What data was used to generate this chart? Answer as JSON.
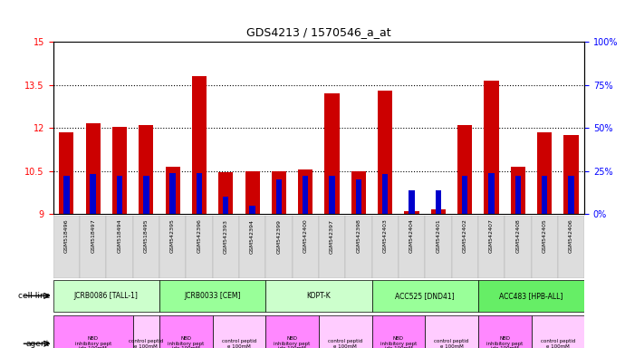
{
  "title": "GDS4213 / 1570546_a_at",
  "samples": [
    "GSM518496",
    "GSM518497",
    "GSM518494",
    "GSM518495",
    "GSM542395",
    "GSM542396",
    "GSM542393",
    "GSM542394",
    "GSM542399",
    "GSM542400",
    "GSM542397",
    "GSM542398",
    "GSM542403",
    "GSM542404",
    "GSM542401",
    "GSM542402",
    "GSM542407",
    "GSM542408",
    "GSM542405",
    "GSM542406"
  ],
  "count_values": [
    11.85,
    12.15,
    12.05,
    12.1,
    10.65,
    13.8,
    10.45,
    10.5,
    10.5,
    10.55,
    13.2,
    10.5,
    13.3,
    9.1,
    9.15,
    12.1,
    13.65,
    10.65,
    11.85,
    11.75
  ],
  "percentile_values": [
    22,
    23,
    22,
    22,
    24,
    24,
    10,
    5,
    20,
    22,
    22,
    20,
    23,
    14,
    14,
    22,
    24,
    22,
    22,
    22
  ],
  "cell_lines": [
    {
      "label": "JCRB0086 [TALL-1]",
      "start": 0,
      "end": 4,
      "color": "#ccffcc"
    },
    {
      "label": "JCRB0033 [CEM]",
      "start": 4,
      "end": 8,
      "color": "#99ff99"
    },
    {
      "label": "KOPT-K",
      "start": 8,
      "end": 12,
      "color": "#ccffcc"
    },
    {
      "label": "ACC525 [DND41]",
      "start": 12,
      "end": 16,
      "color": "#99ff99"
    },
    {
      "label": "ACC483 [HPB-ALL]",
      "start": 16,
      "end": 20,
      "color": "#66ee66"
    }
  ],
  "agents": [
    {
      "label": "NBD\ninhibitory pept\nide 100mM",
      "start": 0,
      "end": 3,
      "color": "#ff88ff"
    },
    {
      "label": "control peptid\ne 100mM",
      "start": 3,
      "end": 4,
      "color": "#ffccff"
    },
    {
      "label": "NBD\ninhibitory pept\nide 100mM",
      "start": 4,
      "end": 6,
      "color": "#ff88ff"
    },
    {
      "label": "control peptid\ne 100mM",
      "start": 6,
      "end": 8,
      "color": "#ffccff"
    },
    {
      "label": "NBD\ninhibitory pept\nide 100mM",
      "start": 8,
      "end": 10,
      "color": "#ff88ff"
    },
    {
      "label": "control peptid\ne 100mM",
      "start": 10,
      "end": 12,
      "color": "#ffccff"
    },
    {
      "label": "NBD\ninhibitory pept\nide 100mM",
      "start": 12,
      "end": 14,
      "color": "#ff88ff"
    },
    {
      "label": "control peptid\ne 100mM",
      "start": 14,
      "end": 16,
      "color": "#ffccff"
    },
    {
      "label": "NBD\ninhibitory pept\nide 100mM",
      "start": 16,
      "end": 18,
      "color": "#ff88ff"
    },
    {
      "label": "control peptid\ne 100mM",
      "start": 18,
      "end": 20,
      "color": "#ffccff"
    }
  ],
  "ylim_left": [
    9,
    15
  ],
  "ylim_right": [
    0,
    100
  ],
  "yticks_left": [
    9,
    10.5,
    12,
    13.5,
    15
  ],
  "yticks_right": [
    0,
    25,
    50,
    75,
    100
  ],
  "bar_color": "#cc0000",
  "percentile_color": "#0000cc",
  "background_color": "#ffffff",
  "bar_width": 0.55,
  "percentile_bar_width": 0.22,
  "tick_label_bg": "#dddddd"
}
